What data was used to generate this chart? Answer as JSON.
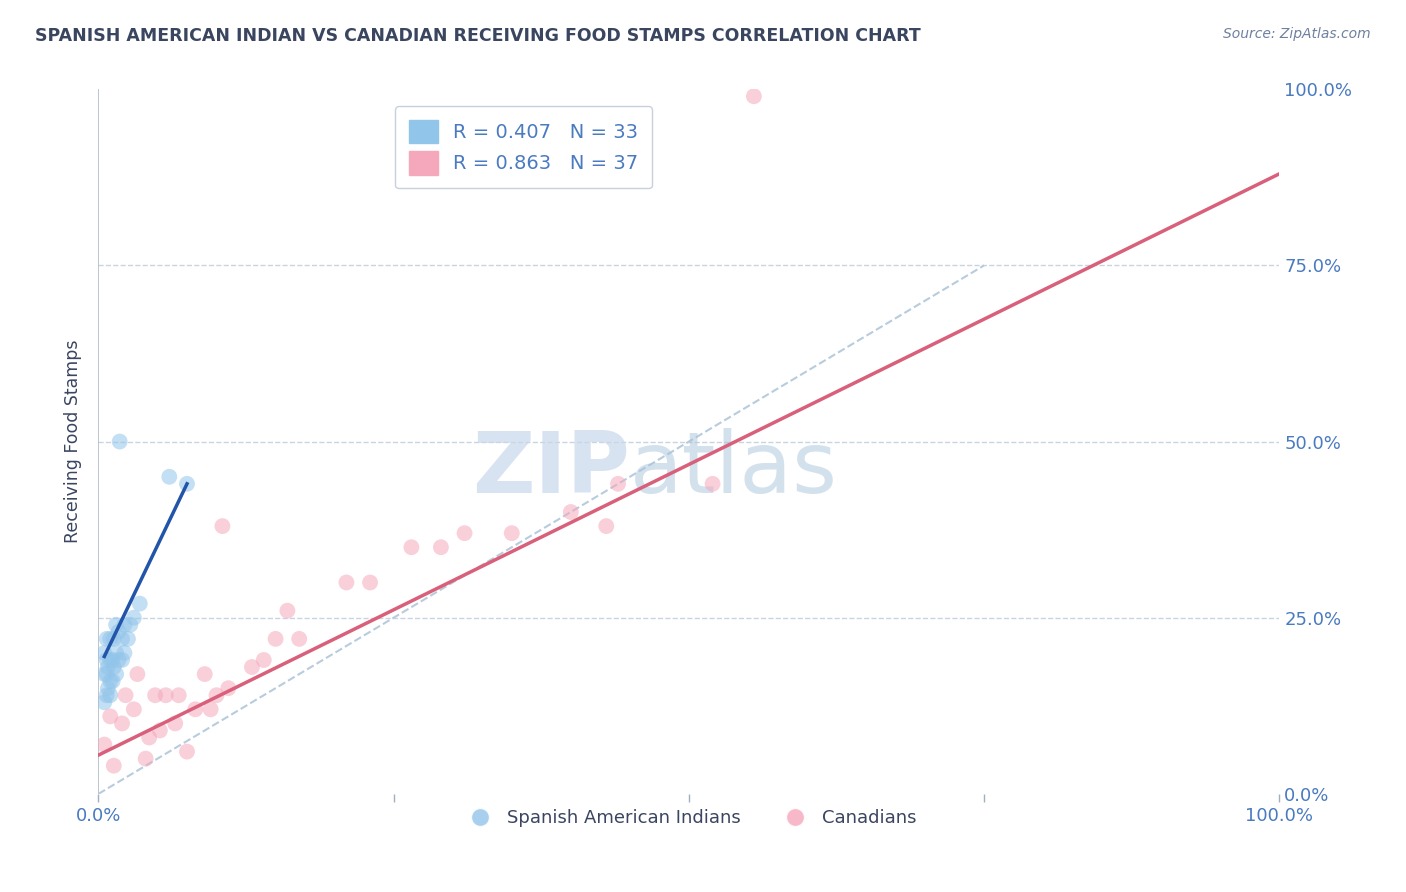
{
  "title": "SPANISH AMERICAN INDIAN VS CANADIAN RECEIVING FOOD STAMPS CORRELATION CHART",
  "source": "Source: ZipAtlas.com",
  "ylabel": "Receiving Food Stamps",
  "xlim": [
    0.0,
    1.0
  ],
  "ylim": [
    0.0,
    1.0
  ],
  "blue_R": 0.407,
  "blue_N": 33,
  "pink_R": 0.863,
  "pink_N": 37,
  "blue_color": "#92C5EA",
  "pink_color": "#F5A8BC",
  "blue_line_color": "#2255AA",
  "pink_line_color": "#D9607A",
  "ref_line_color": "#B8CCDD",
  "legend_label_blue": "Spanish American Indians",
  "legend_label_pink": "Canadians",
  "blue_scatter_x": [
    0.005,
    0.005,
    0.005,
    0.007,
    0.007,
    0.007,
    0.007,
    0.008,
    0.008,
    0.01,
    0.01,
    0.01,
    0.01,
    0.012,
    0.012,
    0.013,
    0.013,
    0.015,
    0.015,
    0.015,
    0.017,
    0.017,
    0.018,
    0.02,
    0.02,
    0.022,
    0.022,
    0.025,
    0.027,
    0.03,
    0.035,
    0.06,
    0.075
  ],
  "blue_scatter_y": [
    0.13,
    0.17,
    0.2,
    0.14,
    0.17,
    0.19,
    0.22,
    0.15,
    0.18,
    0.14,
    0.16,
    0.19,
    0.22,
    0.16,
    0.19,
    0.18,
    0.22,
    0.17,
    0.2,
    0.24,
    0.19,
    0.23,
    0.5,
    0.19,
    0.22,
    0.2,
    0.24,
    0.22,
    0.24,
    0.25,
    0.27,
    0.45,
    0.44
  ],
  "pink_scatter_x": [
    0.005,
    0.01,
    0.013,
    0.02,
    0.023,
    0.03,
    0.033,
    0.04,
    0.043,
    0.048,
    0.052,
    0.057,
    0.065,
    0.068,
    0.075,
    0.082,
    0.09,
    0.095,
    0.1,
    0.105,
    0.11,
    0.13,
    0.14,
    0.15,
    0.16,
    0.17,
    0.21,
    0.23,
    0.265,
    0.29,
    0.31,
    0.35,
    0.4,
    0.43,
    0.44,
    0.52,
    0.555
  ],
  "pink_scatter_y": [
    0.07,
    0.11,
    0.04,
    0.1,
    0.14,
    0.12,
    0.17,
    0.05,
    0.08,
    0.14,
    0.09,
    0.14,
    0.1,
    0.14,
    0.06,
    0.12,
    0.17,
    0.12,
    0.14,
    0.38,
    0.15,
    0.18,
    0.19,
    0.22,
    0.26,
    0.22,
    0.3,
    0.3,
    0.35,
    0.35,
    0.37,
    0.37,
    0.4,
    0.38,
    0.44,
    0.44,
    0.99
  ],
  "blue_trend_x": [
    0.005,
    0.075
  ],
  "blue_trend_y": [
    0.195,
    0.44
  ],
  "pink_trend_x": [
    0.0,
    1.0
  ],
  "pink_trend_y": [
    0.055,
    0.88
  ],
  "ref_line_x": [
    0.0,
    0.75
  ],
  "ref_line_y": [
    0.0,
    0.75
  ],
  "watermark_zip": "ZIP",
  "watermark_atlas": "atlas",
  "background_color": "#FFFFFF",
  "grid_color": "#C8D5E0",
  "title_color": "#3A4560",
  "axis_label_color": "#4A7AC0",
  "marker_size": 130,
  "marker_alpha": 0.55,
  "line_width": 2.5
}
